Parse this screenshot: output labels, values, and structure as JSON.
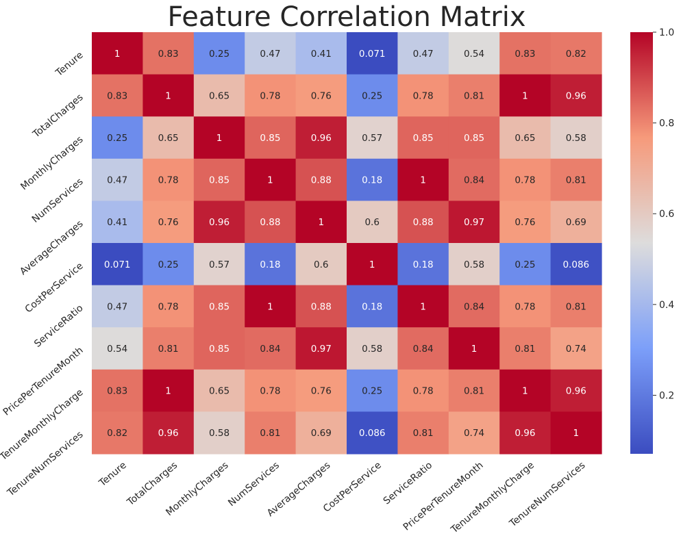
{
  "chart_data": {
    "type": "heatmap",
    "title": "Feature Correlation Matrix",
    "xlabel": "",
    "ylabel": "",
    "colormap": "coolwarm",
    "labels": [
      "Tenure",
      "TotalCharges",
      "MonthlyCharges",
      "NumServices",
      "AverageCharges",
      "CostPerService",
      "ServiceRatio",
      "PricePerTenureMonth",
      "TenureMonthlyCharge",
      "TenureNumServices"
    ],
    "values": [
      [
        1,
        0.83,
        0.25,
        0.47,
        0.41,
        0.071,
        0.47,
        0.54,
        0.83,
        0.82
      ],
      [
        0.83,
        1,
        0.65,
        0.78,
        0.76,
        0.25,
        0.78,
        0.81,
        1,
        0.96
      ],
      [
        0.25,
        0.65,
        1,
        0.85,
        0.96,
        0.57,
        0.85,
        0.85,
        0.65,
        0.58
      ],
      [
        0.47,
        0.78,
        0.85,
        1,
        0.88,
        0.18,
        1,
        0.84,
        0.78,
        0.81
      ],
      [
        0.41,
        0.76,
        0.96,
        0.88,
        1,
        0.6,
        0.88,
        0.97,
        0.76,
        0.69
      ],
      [
        0.071,
        0.25,
        0.57,
        0.18,
        0.6,
        1,
        0.18,
        0.58,
        0.25,
        0.086
      ],
      [
        0.47,
        0.78,
        0.85,
        1,
        0.88,
        0.18,
        1,
        0.84,
        0.78,
        0.81
      ],
      [
        0.54,
        0.81,
        0.85,
        0.84,
        0.97,
        0.58,
        0.84,
        1,
        0.81,
        0.74
      ],
      [
        0.83,
        1,
        0.65,
        0.78,
        0.76,
        0.25,
        0.78,
        0.81,
        1,
        0.96
      ],
      [
        0.82,
        0.96,
        0.58,
        0.81,
        0.69,
        0.086,
        0.81,
        0.74,
        0.96,
        1
      ]
    ],
    "colorbar": {
      "range": [
        0.071,
        1.0
      ],
      "ticks": [
        0.2,
        0.4,
        0.6,
        0.8,
        1.0
      ],
      "tick_labels": [
        "0.2",
        "0.4",
        "0.6",
        "0.8",
        "1.0"
      ]
    }
  }
}
